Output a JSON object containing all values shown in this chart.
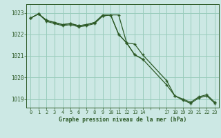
{
  "background_color": "#cce8e4",
  "plot_bg_color": "#cce8e4",
  "grid_color": "#99ccbb",
  "line_color": "#2d5a27",
  "marker_color": "#2d5a27",
  "title": "Graphe pression niveau de la mer (hPa)",
  "title_color": "#2d5a27",
  "tick_color": "#2d5a27",
  "ylim": [
    1018.6,
    1023.4
  ],
  "yticks": [
    1019,
    1020,
    1021,
    1022,
    1023
  ],
  "xtick_labels": [
    "0",
    "1",
    "2",
    "3",
    "4",
    "5",
    "6",
    "7",
    "8",
    "9",
    "10",
    "11",
    "12",
    "13",
    "14",
    "",
    "",
    "17",
    "18",
    "19",
    "20",
    "21",
    "22",
    "23"
  ],
  "xtick_positions": [
    0,
    1,
    2,
    3,
    4,
    5,
    6,
    7,
    8,
    9,
    10,
    11,
    12,
    13,
    14,
    15,
    16,
    17,
    18,
    19,
    20,
    21,
    22,
    23
  ],
  "xlim": [
    -0.5,
    23.5
  ],
  "series1_x": [
    0,
    1,
    2,
    3,
    4,
    5,
    6,
    7,
    8,
    9,
    10,
    11,
    12,
    13,
    14
  ],
  "series1_y": [
    1022.75,
    1022.95,
    1022.65,
    1022.55,
    1022.45,
    1022.5,
    1022.4,
    1022.45,
    1022.55,
    1022.85,
    1022.9,
    1022.9,
    1021.6,
    1021.05,
    1020.85
  ],
  "series2_x": [
    0,
    1,
    2,
    3,
    4,
    5,
    6,
    7,
    8,
    9,
    10,
    11,
    12,
    13,
    14,
    17,
    18,
    19,
    20,
    21,
    22,
    23
  ],
  "series2_y": [
    1022.75,
    1022.95,
    1022.65,
    1022.55,
    1022.45,
    1022.5,
    1022.4,
    1022.45,
    1022.55,
    1022.9,
    1022.9,
    1022.0,
    1021.6,
    1021.55,
    1021.05,
    1019.85,
    1019.15,
    1019.0,
    1018.85,
    1019.1,
    1019.2,
    1018.85
  ],
  "series3_x": [
    0,
    1,
    2,
    3,
    4,
    5,
    6,
    7,
    8,
    9,
    10,
    11,
    12,
    13,
    14,
    17,
    18,
    19,
    20,
    21,
    22,
    23
  ],
  "series3_y": [
    1022.75,
    1022.95,
    1022.6,
    1022.5,
    1022.4,
    1022.45,
    1022.35,
    1022.4,
    1022.5,
    1022.85,
    1022.9,
    1022.0,
    1021.6,
    1021.05,
    1020.85,
    1019.65,
    1019.15,
    1018.95,
    1018.8,
    1019.05,
    1019.15,
    1018.8
  ]
}
